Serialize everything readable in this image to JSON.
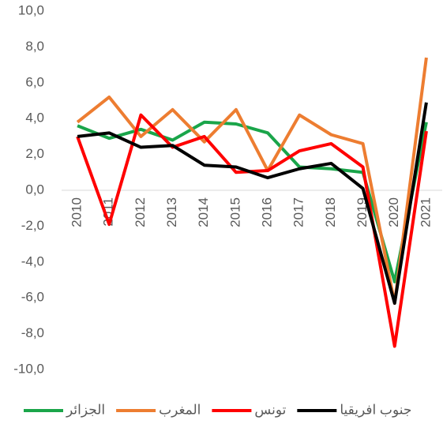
{
  "chart_data": {
    "type": "line",
    "categories": [
      "2010",
      "2011",
      "2012",
      "2013",
      "2014",
      "2015",
      "2016",
      "2017",
      "2018",
      "2019",
      "2020",
      "2021"
    ],
    "series": [
      {
        "name": "الجزائر",
        "color": "#1aa54a",
        "values": [
          3.6,
          2.9,
          3.4,
          2.8,
          3.8,
          3.7,
          3.2,
          1.3,
          1.2,
          1.0,
          -5.1,
          3.8
        ]
      },
      {
        "name": "المغرب",
        "color": "#ed7d31",
        "values": [
          3.8,
          5.2,
          3.0,
          4.5,
          2.7,
          4.5,
          1.1,
          4.2,
          3.1,
          2.6,
          -6.3,
          7.4
        ]
      },
      {
        "name": "تونس",
        "color": "#ff0000",
        "values": [
          3.0,
          -1.9,
          4.2,
          2.4,
          3.0,
          1.0,
          1.1,
          2.2,
          2.6,
          1.3,
          -8.7,
          3.3
        ]
      },
      {
        "name": "جنوب افريقيا",
        "color": "#000000",
        "values": [
          3.0,
          3.2,
          2.4,
          2.5,
          1.4,
          1.3,
          0.7,
          1.2,
          1.5,
          0.1,
          -6.3,
          4.9
        ]
      }
    ],
    "ylim": [
      -10,
      10
    ],
    "yticks": [
      {
        "value": -10,
        "label": "-10,0"
      },
      {
        "value": -8,
        "label": "-8,0"
      },
      {
        "value": -6,
        "label": "-6,0"
      },
      {
        "value": -4,
        "label": "-4,0"
      },
      {
        "value": -2,
        "label": "-2,0"
      },
      {
        "value": 0,
        "label": "0,0"
      },
      {
        "value": 2,
        "label": "2,0"
      },
      {
        "value": 4,
        "label": "4,0"
      },
      {
        "value": 6,
        "label": "6,0"
      },
      {
        "value": 8,
        "label": "8,0"
      },
      {
        "value": 10,
        "label": "10,0"
      }
    ],
    "grid": false
  }
}
